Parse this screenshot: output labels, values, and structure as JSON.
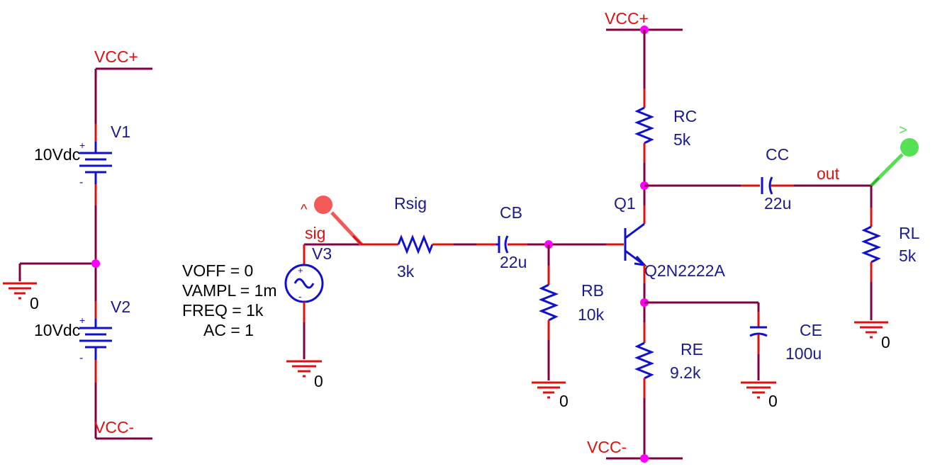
{
  "nets": {
    "vcc_plus": "VCC+",
    "vcc_minus": "VCC-",
    "sig": "sig",
    "out": "out",
    "ground": "0"
  },
  "sources": {
    "v1": {
      "ref": "V1",
      "value": "10Vdc"
    },
    "v2": {
      "ref": "V2",
      "value": "10Vdc"
    },
    "v3": {
      "ref": "V3",
      "voff": "VOFF = 0",
      "vampl": "VAMPL = 1m",
      "freq": "FREQ = 1k",
      "ac": "AC = 1"
    }
  },
  "components": {
    "rsig": {
      "ref": "Rsig",
      "value": "3k"
    },
    "cb": {
      "ref": "CB",
      "value": "22u"
    },
    "rb": {
      "ref": "RB",
      "value": "10k"
    },
    "q1": {
      "ref": "Q1",
      "model": "Q2N2222A"
    },
    "rc": {
      "ref": "RC",
      "value": "5k"
    },
    "re": {
      "ref": "RE",
      "value": "9.2k"
    },
    "ce": {
      "ref": "CE",
      "value": "100u"
    },
    "cc": {
      "ref": "CC",
      "value": "22u"
    },
    "rl": {
      "ref": "RL",
      "value": "5k"
    }
  },
  "probes": {
    "input_probe": {
      "symbol": "^",
      "color": "#f25a5a"
    },
    "output_probe": {
      "symbol": ">",
      "color": "#55e055"
    }
  },
  "colors": {
    "wire": "#800040",
    "pin": "#e01010",
    "component": "#1010d0",
    "node": "#ff00ff",
    "label": "#1a1a8c",
    "net_label": "#e01010"
  }
}
